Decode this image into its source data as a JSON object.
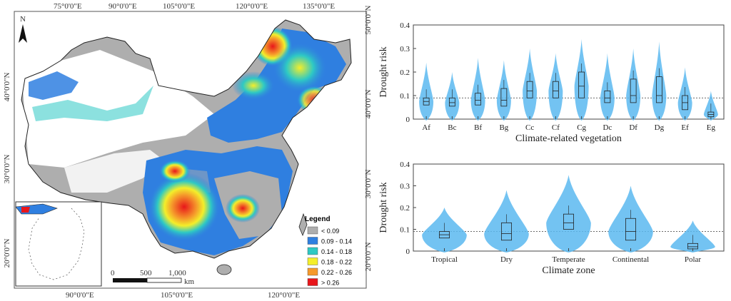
{
  "map": {
    "north_label": "N",
    "top_coords": [
      "75°0'0\"E",
      "90°0'0\"E",
      "105°0'0\"E",
      "120°0'0\"E",
      "135°0'0\"E"
    ],
    "bottom_coords": [
      "90°0'0\"E",
      "105°0'0\"E",
      "120°0'0\"E"
    ],
    "left_coords": [
      "40°0'0\"N",
      "30°0'0\"N",
      "20°0'0\"N"
    ],
    "right_coords": [
      "50°0'0\"N",
      "40°0'0\"N",
      "30°0'0\"N",
      "20°0'0\"N"
    ],
    "scale_labels": [
      "0",
      "500",
      "1,000"
    ],
    "scale_unit": "km",
    "legend": {
      "title": "Legend",
      "items": [
        {
          "label": "< 0.09",
          "color": "#aeaeae"
        },
        {
          "label": "0.09 - 0.14",
          "color": "#2f7fe0"
        },
        {
          "label": "0.14 - 0.18",
          "color": "#2ec9c4"
        },
        {
          "label": "0.18 - 0.22",
          "color": "#f4ee2a"
        },
        {
          "label": "0.22 - 0.26",
          "color": "#f59a2b"
        },
        {
          "label": "> 0.26",
          "color": "#e8161b"
        }
      ]
    }
  },
  "chart_data": [
    {
      "type": "violin",
      "xlabel": "Climate-related vegetation",
      "ylabel": "Drought risk",
      "ylim": [
        0,
        0.4
      ],
      "yticks": [
        "0",
        "0.1",
        "0.2",
        "0.3",
        "0.4"
      ],
      "reference_line": 0.09,
      "categories": [
        "Af",
        "Bc",
        "Bf",
        "Bg",
        "Cc",
        "Cf",
        "Cg",
        "Dc",
        "Df",
        "Dg",
        "Ef",
        "Eg"
      ],
      "max": [
        0.24,
        0.2,
        0.26,
        0.25,
        0.3,
        0.28,
        0.34,
        0.28,
        0.3,
        0.33,
        0.22,
        0.12
      ],
      "q1": [
        0.06,
        0.055,
        0.06,
        0.055,
        0.09,
        0.09,
        0.09,
        0.07,
        0.07,
        0.07,
        0.04,
        0.01
      ],
      "median": [
        0.075,
        0.07,
        0.08,
        0.08,
        0.12,
        0.12,
        0.14,
        0.09,
        0.1,
        0.1,
        0.07,
        0.02
      ],
      "q3": [
        0.09,
        0.09,
        0.11,
        0.13,
        0.16,
        0.16,
        0.2,
        0.12,
        0.17,
        0.18,
        0.1,
        0.03
      ],
      "color": "#5ab8f0"
    },
    {
      "type": "violin",
      "xlabel": "Climate zone",
      "ylabel": "Drought risk",
      "ylim": [
        0,
        0.4
      ],
      "yticks": [
        "0",
        "0.1",
        "0.2",
        "0.3",
        "0.4"
      ],
      "reference_line": 0.09,
      "categories": [
        "Tropical",
        "Dry",
        "Temperate",
        "Continental",
        "Polar"
      ],
      "max": [
        0.2,
        0.28,
        0.35,
        0.3,
        0.14
      ],
      "q1": [
        0.06,
        0.05,
        0.1,
        0.05,
        0.01
      ],
      "median": [
        0.075,
        0.08,
        0.13,
        0.09,
        0.02
      ],
      "q3": [
        0.09,
        0.13,
        0.17,
        0.15,
        0.035
      ],
      "color": "#5ab8f0"
    }
  ]
}
